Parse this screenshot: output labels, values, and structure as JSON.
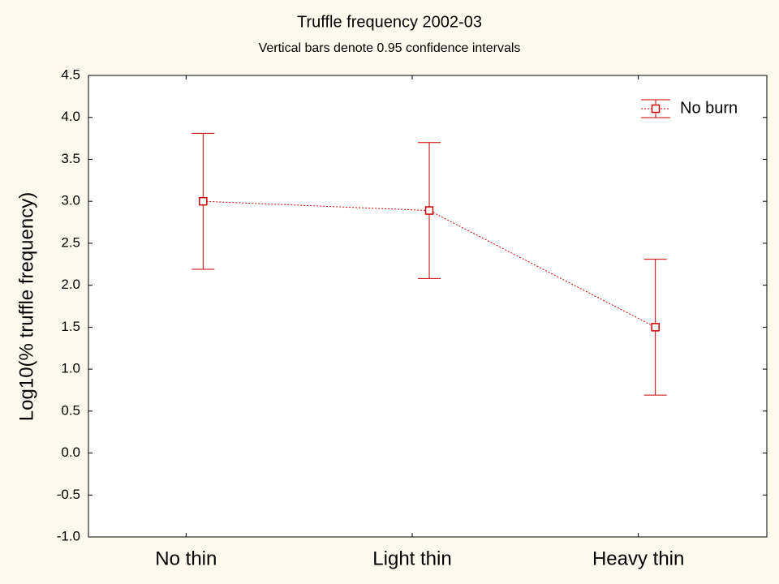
{
  "chart_data": {
    "type": "line",
    "title": "Truffle frequency 2002-03",
    "subtitle": "Vertical bars denote 0.95 confidence intervals",
    "ylabel": "Log10(% truffle frequency)",
    "categories": [
      "No thin",
      "Light thin",
      "Heavy thin"
    ],
    "series": [
      {
        "name": "No burn",
        "color": "#cc0000",
        "values": [
          3.0,
          2.89,
          1.5
        ],
        "errors": [
          0.81,
          0.81,
          0.81
        ]
      }
    ],
    "ylim": [
      -1,
      4.5
    ],
    "yticks": [
      {
        "value": -1,
        "label": "-1.0"
      },
      -0.5,
      {
        "value": 0,
        "label": "0.0"
      },
      0.5,
      {
        "value": 1,
        "label": "1.0"
      },
      1.5,
      {
        "value": 2,
        "label": "2.0"
      },
      2.5,
      {
        "value": 3,
        "label": "3.0"
      },
      3.5,
      {
        "value": 4,
        "label": "4.0"
      },
      4.5
    ],
    "legend": "upper right"
  }
}
